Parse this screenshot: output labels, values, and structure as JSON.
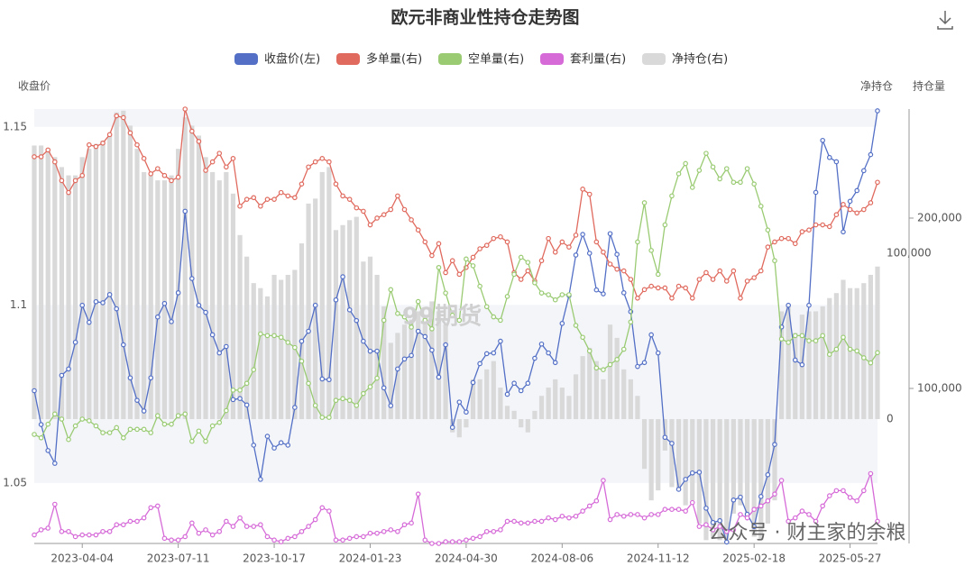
{
  "chart_data": {
    "type": "combo",
    "title": "欧元非商业性持仓走势图",
    "y_label": "收盘价",
    "y2_label": "净持仓",
    "y3_label": "持仓量",
    "watermarks": [
      "99期货",
      "公众号 · 财主家的余粮"
    ],
    "categories": [
      null,
      null,
      null,
      null,
      null,
      null,
      null,
      "2023-04-04",
      null,
      null,
      null,
      null,
      null,
      null,
      null,
      null,
      null,
      null,
      null,
      null,
      null,
      "2023-07-11",
      null,
      null,
      null,
      null,
      null,
      null,
      null,
      null,
      null,
      null,
      null,
      null,
      null,
      "2023-10-17",
      null,
      null,
      null,
      null,
      null,
      null,
      null,
      null,
      null,
      null,
      null,
      null,
      null,
      "2024-01-23",
      null,
      null,
      null,
      null,
      null,
      null,
      null,
      null,
      null,
      null,
      null,
      null,
      null,
      "2024-04-30",
      null,
      null,
      null,
      null,
      null,
      null,
      null,
      null,
      null,
      null,
      null,
      null,
      null,
      "2024-08-06",
      null,
      null,
      null,
      null,
      null,
      null,
      null,
      null,
      null,
      null,
      null,
      null,
      null,
      "2024-11-12",
      null,
      null,
      null,
      null,
      null,
      null,
      null,
      null,
      null,
      null,
      null,
      null,
      null,
      "2025-02-18",
      null,
      null,
      null,
      null,
      null,
      null,
      null,
      null,
      null,
      null,
      null,
      null,
      null,
      "2025-05-27",
      null,
      null,
      null,
      null
    ],
    "ylim": [
      1.033,
      1.155
    ],
    "yticks": [
      1.05,
      1.1,
      1.15
    ],
    "y2lim": [
      -75000,
      187000
    ],
    "y2ticks": [
      0,
      {
        "value": 100000,
        "label": "100,000"
      }
    ],
    "y3lim": [
      9000,
      264000
    ],
    "y3ticks": [
      {
        "value": 100000,
        "label": "100,000"
      },
      {
        "value": 200000,
        "label": "200,000"
      }
    ],
    "split_area": true,
    "series": [
      {
        "name": "收盘价(左)",
        "type": "line",
        "axis": "y",
        "color": "#5470c6",
        "values": [
          1.0759,
          1.0664,
          1.0591,
          1.0555,
          1.0802,
          1.082,
          1.0895,
          1.0999,
          1.0951,
          1.1009,
          1.1006,
          1.1029,
          1.0989,
          1.0888,
          1.0795,
          1.0732,
          1.0702,
          1.0795,
          1.0966,
          1.1004,
          1.0953,
          1.1034,
          1.1263,
          1.1074,
          1.0999,
          1.0979,
          1.0916,
          1.0865,
          1.0883,
          1.0734,
          1.0737,
          1.0719,
          1.0606,
          1.051,
          1.0631,
          1.0598,
          1.0613,
          1.0606,
          1.0712,
          1.0898,
          1.0926,
          1.0999,
          1.0792,
          1.079,
          1.1014,
          1.1079,
          1.0986,
          1.0956,
          1.0898,
          1.087,
          1.087,
          1.0767,
          1.0717,
          1.082,
          1.0848,
          1.0858,
          1.0926,
          1.0911,
          1.0873,
          1.0797,
          1.0888,
          1.0656,
          1.0727,
          1.0699,
          1.0782,
          1.0835,
          1.0863,
          1.0865,
          1.0898,
          1.0749,
          1.078,
          1.0759,
          1.078,
          1.085,
          1.089,
          1.0865,
          1.0838,
          1.0948,
          1.1026,
          1.114,
          1.1198,
          1.1145,
          1.1042,
          1.1031,
          1.12,
          1.1142,
          1.1034,
          1.0981,
          1.0827,
          1.0838,
          1.0916,
          1.0865,
          1.0628,
          1.0611,
          1.0482,
          1.051,
          1.0528,
          1.053,
          1.0429,
          1.0389,
          1.0394,
          1.0334,
          1.0452,
          1.046,
          1.0412,
          1.0377,
          1.0462,
          1.0523,
          1.0608,
          1.0938,
          1.0999,
          1.0845,
          1.0832,
          1.0999,
          1.1316,
          1.1462,
          1.1414,
          1.1402,
          1.1205,
          1.1291,
          1.1321,
          1.1377,
          1.1422,
          1.1545
        ]
      },
      {
        "name": "多单量(右)",
        "type": "line",
        "axis": "y3",
        "color": "#e06a5e",
        "values": [
          236000,
          236000,
          240000,
          233000,
          222000,
          215000,
          222000,
          225000,
          243000,
          242000,
          244000,
          249000,
          260000,
          259000,
          250000,
          243000,
          235000,
          226000,
          229000,
          225000,
          222000,
          224000,
          264000,
          251000,
          245000,
          228000,
          233000,
          238000,
          230000,
          235000,
          207000,
          211000,
          212000,
          207000,
          211000,
          211000,
          215000,
          213000,
          212000,
          220000,
          230000,
          233000,
          235000,
          233000,
          220000,
          213000,
          211000,
          206000,
          204000,
          196000,
          200000,
          202000,
          205000,
          213000,
          205000,
          199000,
          193000,
          186000,
          178000,
          185000,
          168000,
          175000,
          167000,
          171000,
          177000,
          182000,
          184000,
          188000,
          189000,
          186000,
          168000,
          164000,
          169000,
          163000,
          175000,
          188000,
          180000,
          186000,
          183000,
          190000,
          217000,
          214000,
          186000,
          180000,
          173000,
          170000,
          169000,
          164000,
          153000,
          158000,
          160000,
          159000,
          159000,
          153000,
          160000,
          159000,
          153000,
          164000,
          168000,
          164000,
          169000,
          163000,
          169000,
          153000,
          163000,
          165000,
          169000,
          183000,
          186000,
          188000,
          188000,
          185000,
          192000,
          193000,
          196000,
          196000,
          195000,
          202000,
          208000,
          205000,
          203000,
          205000,
          209000,
          221000
        ]
      },
      {
        "name": "空单量(右)",
        "type": "line",
        "axis": "y3",
        "color": "#9acb73",
        "values": [
          73000,
          71000,
          79000,
          85000,
          82000,
          70000,
          78000,
          82000,
          81000,
          78000,
          74000,
          74000,
          77000,
          71000,
          76000,
          76000,
          76000,
          74000,
          84000,
          79000,
          79000,
          84000,
          85000,
          69000,
          75000,
          69000,
          78000,
          80000,
          87000,
          99000,
          99000,
          103000,
          111000,
          132000,
          131000,
          131000,
          130000,
          127000,
          124000,
          116000,
          103000,
          90000,
          83000,
          83000,
          93000,
          94000,
          93000,
          90000,
          97000,
          101000,
          106000,
          140000,
          158000,
          144000,
          142000,
          136000,
          151000,
          140000,
          135000,
          171000,
          156000,
          143000,
          140000,
          176000,
          172000,
          160000,
          148000,
          142000,
          140000,
          154000,
          167000,
          177000,
          174000,
          162000,
          156000,
          155000,
          152000,
          155000,
          155000,
          137000,
          130000,
          122000,
          112000,
          111000,
          114000,
          117000,
          123000,
          139000,
          186000,
          209000,
          181000,
          167000,
          196000,
          213000,
          226000,
          232000,
          218000,
          228000,
          238000,
          230000,
          223000,
          229000,
          221000,
          221000,
          229000,
          220000,
          207000,
          193000,
          175000,
          129000,
          127000,
          131000,
          131000,
          128000,
          128000,
          131000,
          120000,
          123000,
          130000,
          123000,
          122000,
          118000,
          115000,
          121000
        ]
      },
      {
        "name": "套利量(右)",
        "type": "line",
        "axis": "y3",
        "color": "#d66bd8",
        "values": [
          14000,
          17000,
          18000,
          32000,
          16000,
          16000,
          13000,
          14000,
          14000,
          14000,
          16000,
          16000,
          20000,
          20000,
          22000,
          22000,
          24000,
          30000,
          31000,
          12000,
          11000,
          11000,
          13000,
          21000,
          15000,
          17000,
          14000,
          16000,
          22000,
          19000,
          24000,
          19000,
          19000,
          20000,
          13000,
          11000,
          10000,
          12000,
          13000,
          16000,
          19000,
          23000,
          30000,
          28000,
          11000,
          11000,
          12000,
          13000,
          13000,
          15000,
          15000,
          16000,
          17000,
          16000,
          20000,
          21000,
          38000,
          11000,
          9000,
          9000,
          10000,
          10000,
          10000,
          11000,
          12000,
          13000,
          16000,
          16000,
          17000,
          22000,
          22000,
          21000,
          21000,
          22000,
          22000,
          24000,
          23000,
          25000,
          24000,
          25000,
          28000,
          31000,
          34000,
          46000,
          23000,
          26000,
          25000,
          26000,
          26000,
          24000,
          26000,
          26000,
          29000,
          29000,
          29000,
          28000,
          33000,
          19000,
          20000,
          17000,
          19000,
          16000,
          17000,
          26000,
          24000,
          29000,
          31000,
          34000,
          38000,
          46000,
          22000,
          24000,
          28000,
          26000,
          22000,
          31000,
          37000,
          40000,
          40000,
          36000,
          34000,
          40000,
          50000,
          22000
        ]
      },
      {
        "name": "净持仓(右)",
        "type": "bar",
        "axis": "y2",
        "color": "#d9d9d9",
        "values": [
          165000,
          165000,
          163000,
          158000,
          152000,
          147000,
          147000,
          158000,
          163000,
          166000,
          168000,
          171000,
          185000,
          186000,
          177000,
          163000,
          149000,
          147000,
          144000,
          144000,
          147000,
          163000,
          182000,
          177000,
          171000,
          158000,
          149000,
          144000,
          149000,
          136000,
          111000,
          98000,
          82000,
          79000,
          74000,
          87000,
          84000,
          87000,
          90000,
          106000,
          130000,
          133000,
          149000,
          152000,
          114000,
          117000,
          120000,
          122000,
          95000,
          98000,
          87000,
          68000,
          46000,
          52000,
          57000,
          60000,
          65000,
          63000,
          71000,
          65000,
          57000,
          -8000,
          -11000,
          -5000,
          24000,
          24000,
          30000,
          35000,
          19000,
          8000,
          5000,
          -5000,
          -8000,
          5000,
          14000,
          19000,
          24000,
          19000,
          14000,
          27000,
          38000,
          43000,
          35000,
          24000,
          57000,
          49000,
          30000,
          24000,
          14000,
          -30000,
          -49000,
          -43000,
          -19000,
          -41000,
          -43000,
          -52000,
          -49000,
          -63000,
          -73000,
          -71000,
          -73000,
          -73000,
          -57000,
          -52000,
          -60000,
          -71000,
          -73000,
          -63000,
          -49000,
          65000,
          68000,
          52000,
          63000,
          65000,
          65000,
          68000,
          73000,
          76000,
          84000,
          79000,
          79000,
          82000,
          87000,
          92000
        ]
      }
    ]
  }
}
